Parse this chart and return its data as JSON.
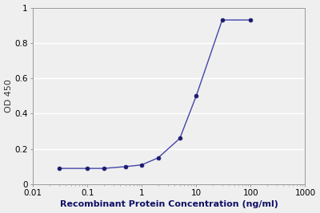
{
  "x": [
    0.03,
    0.1,
    0.2,
    0.5,
    1.0,
    2.0,
    5.0,
    10.0,
    30.0,
    100.0
  ],
  "y": [
    0.09,
    0.09,
    0.09,
    0.1,
    0.11,
    0.15,
    0.26,
    0.5,
    0.93,
    0.93
  ],
  "line_color": "#4444aa",
  "marker_color": "#1a1a6e",
  "xlabel": "Recombinant Protein Concentration (ng/ml)",
  "ylabel": "OD 450",
  "xlim": [
    0.01,
    1000
  ],
  "ylim": [
    0,
    1.0
  ],
  "yticks": [
    0,
    0.2,
    0.4,
    0.6,
    0.8,
    1.0
  ],
  "ytick_labels": [
    "0",
    "0.2",
    "0.4",
    "0.6",
    "0.8",
    "1"
  ],
  "xtick_positions": [
    0.01,
    0.1,
    1,
    10,
    100,
    1000
  ],
  "xtick_labels": [
    "0.01",
    "0.1",
    "1",
    "10",
    "100",
    "1000"
  ],
  "background_color": "#efefef",
  "plot_bg_color": "#efefef",
  "grid_color": "#ffffff",
  "label_fontsize": 8,
  "tick_fontsize": 7.5
}
